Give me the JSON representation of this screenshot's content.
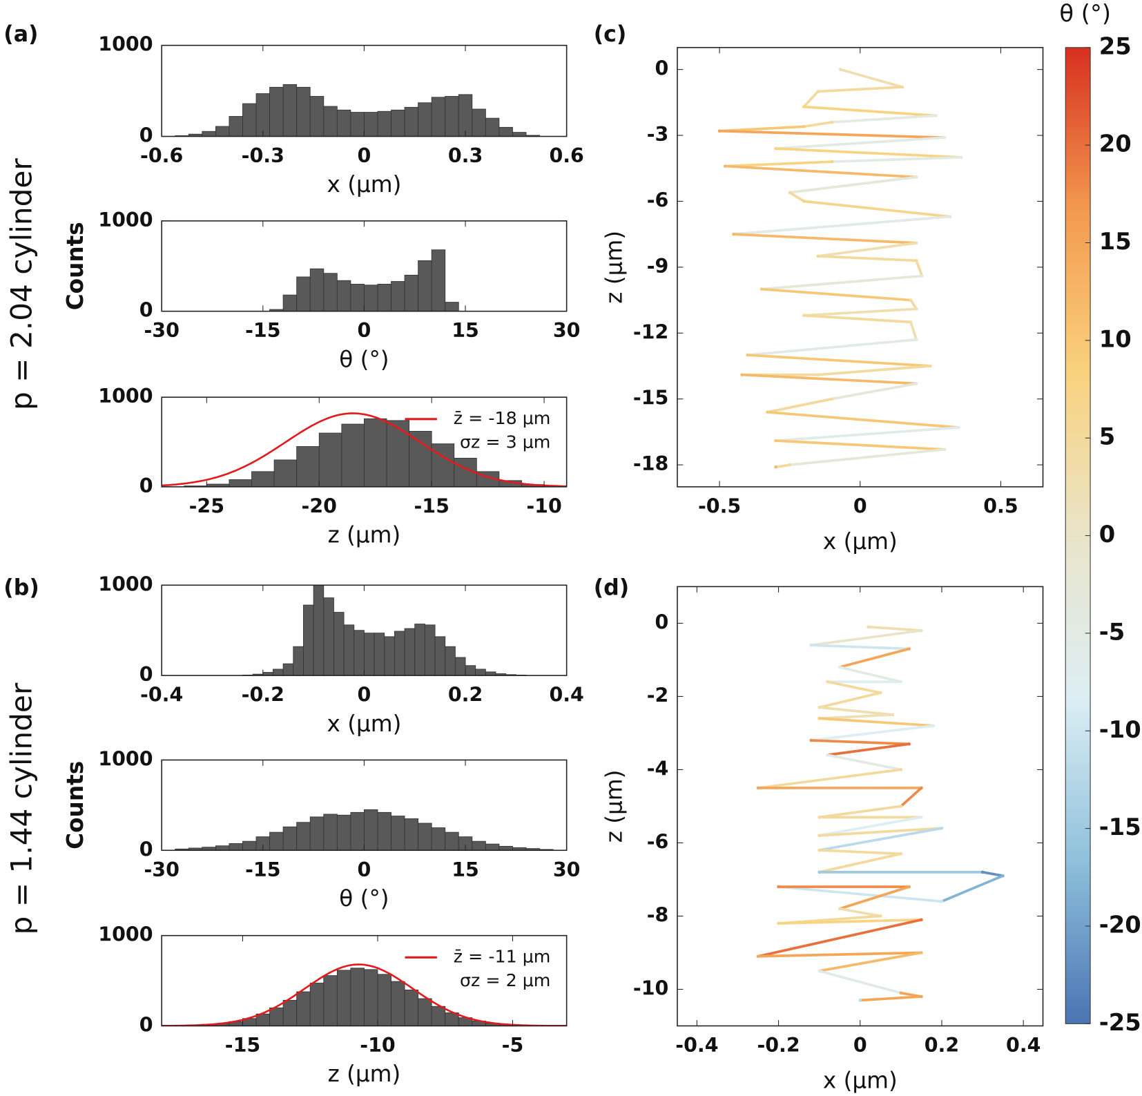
{
  "figure": {
    "panel_labels": [
      "(a)",
      "(b)",
      "(c)",
      "(d)"
    ],
    "row_labels": [
      "p = 2.04 cylinder",
      "p = 1.44 cylinder"
    ]
  },
  "chart_data": [
    {
      "type": "histogram",
      "xlabel": "x  (μm)",
      "xlim": [
        -0.6,
        0.6
      ],
      "xticks": [
        -0.6,
        -0.3,
        0,
        0.3,
        0.6
      ],
      "ylim": [
        0,
        1000
      ],
      "yticks": [
        0,
        1000
      ],
      "color": "#595959",
      "bins": [
        -0.56,
        -0.52,
        -0.48,
        -0.44,
        -0.4,
        -0.36,
        -0.32,
        -0.28,
        -0.24,
        -0.2,
        -0.16,
        -0.12,
        -0.08,
        -0.04,
        0,
        0.04,
        0.08,
        0.12,
        0.16,
        0.2,
        0.24,
        0.28,
        0.32,
        0.36,
        0.4,
        0.44,
        0.48,
        0.52
      ],
      "values": [
        8,
        25,
        55,
        110,
        220,
        360,
        470,
        540,
        570,
        540,
        440,
        330,
        290,
        265,
        265,
        275,
        290,
        320,
        370,
        430,
        440,
        460,
        300,
        200,
        100,
        45,
        12
      ]
    },
    {
      "type": "histogram",
      "xlabel": "θ  (°)",
      "ylabel": "Counts",
      "xlim": [
        -30,
        30
      ],
      "xticks": [
        -30,
        -15,
        0,
        15,
        30
      ],
      "ylim": [
        0,
        1000
      ],
      "yticks": [
        0,
        1000
      ],
      "color": "#595959",
      "bins": [
        -14,
        -12,
        -10,
        -8,
        -6,
        -4,
        -2,
        0,
        2,
        4,
        6,
        8,
        10,
        12,
        14
      ],
      "values": [
        20,
        180,
        380,
        470,
        420,
        340,
        300,
        290,
        300,
        330,
        400,
        560,
        680,
        100
      ]
    },
    {
      "type": "histogram",
      "xlabel": "z  (μm)",
      "xlim": [
        -27,
        -9
      ],
      "xticks": [
        -25,
        -20,
        -15,
        -10
      ],
      "ylim": [
        0,
        1000
      ],
      "yticks": [
        0,
        1000
      ],
      "color": "#595959",
      "bins": [
        -26,
        -25,
        -24,
        -23,
        -22,
        -21,
        -20,
        -19,
        -18,
        -17,
        -16,
        -15,
        -14,
        -13,
        -12,
        -11,
        -10
      ],
      "values": [
        10,
        30,
        80,
        170,
        300,
        450,
        600,
        700,
        760,
        740,
        620,
        480,
        320,
        170,
        70,
        25
      ],
      "fit": {
        "name": "z̄  = -18 μm",
        "sigma_label": "σz = 3 μm",
        "color": "#e31a1c",
        "mean": -18.5,
        "sigma": 3,
        "peak": 820
      }
    },
    {
      "type": "histogram",
      "xlabel": "x  (μm)",
      "xlim": [
        -0.4,
        0.4
      ],
      "xticks": [
        -0.4,
        -0.2,
        0,
        0.2,
        0.4
      ],
      "ylim": [
        0,
        1000
      ],
      "yticks": [
        0,
        1000
      ],
      "color": "#595959",
      "bins": [
        -0.24,
        -0.22,
        -0.2,
        -0.18,
        -0.16,
        -0.14,
        -0.12,
        -0.1,
        -0.08,
        -0.06,
        -0.04,
        -0.02,
        0,
        0.02,
        0.04,
        0.06,
        0.08,
        0.1,
        0.12,
        0.14,
        0.16,
        0.18,
        0.2,
        0.22,
        0.24,
        0.26,
        0.28,
        0.3,
        0.32
      ],
      "values": [
        5,
        15,
        35,
        70,
        130,
        320,
        780,
        1000,
        860,
        700,
        560,
        500,
        470,
        470,
        430,
        490,
        520,
        570,
        560,
        430,
        320,
        200,
        110,
        70,
        40,
        20,
        10,
        5
      ]
    },
    {
      "type": "histogram",
      "xlabel": "θ  (°)",
      "ylabel": "Counts",
      "xlim": [
        -30,
        30
      ],
      "xticks": [
        -30,
        -15,
        0,
        15,
        30
      ],
      "ylim": [
        0,
        1000
      ],
      "yticks": [
        0,
        1000
      ],
      "color": "#595959",
      "bins": [
        -28,
        -26,
        -24,
        -22,
        -20,
        -18,
        -16,
        -14,
        -12,
        -10,
        -8,
        -6,
        -4,
        -2,
        0,
        2,
        4,
        6,
        8,
        10,
        12,
        14,
        16,
        18,
        20,
        22,
        24,
        26,
        28
      ],
      "values": [
        15,
        25,
        35,
        50,
        75,
        100,
        150,
        200,
        260,
        310,
        370,
        400,
        390,
        420,
        450,
        420,
        380,
        350,
        300,
        250,
        200,
        150,
        100,
        70,
        45,
        30,
        20,
        10
      ]
    },
    {
      "type": "histogram",
      "xlabel": "z  (μm)",
      "xlim": [
        -18,
        -3
      ],
      "xticks": [
        -15,
        -10,
        -5
      ],
      "ylim": [
        0,
        1000
      ],
      "yticks": [
        0,
        1000
      ],
      "color": "#595959",
      "bins": [
        -17,
        -16.5,
        -16,
        -15.5,
        -15,
        -14.5,
        -14,
        -13.5,
        -13,
        -12.5,
        -12,
        -11.5,
        -11,
        -10.5,
        -10,
        -9.5,
        -9,
        -8.5,
        -8,
        -7.5,
        -7,
        -6.5,
        -6,
        -5.5,
        -5
      ],
      "values": [
        6,
        13,
        26,
        48,
        82,
        132,
        200,
        284,
        378,
        474,
        557,
        616,
        640,
        624,
        571,
        492,
        398,
        302,
        216,
        145,
        91,
        54,
        30,
        15
      ],
      "fit": {
        "name": "z̄  = -11 μm",
        "sigma_label": "σz = 2 μm",
        "color": "#e31a1c",
        "mean": -10.7,
        "sigma": 2,
        "peak": 680
      }
    },
    {
      "type": "trajectory",
      "xlabel": "x  (μm)",
      "ylabel": "z  (μm)",
      "xlim": [
        -0.65,
        0.65
      ],
      "xticks": [
        -0.5,
        0,
        0.5
      ],
      "ylim": [
        -19,
        1
      ],
      "yticks": [
        0,
        -3,
        -6,
        -9,
        -12,
        -15,
        -18
      ],
      "x": [
        -0.07,
        0.15,
        -0.15,
        -0.2,
        0.27,
        -0.1,
        -0.2,
        -0.5,
        0.3,
        -0.3,
        0.36,
        -0.1,
        -0.48,
        0.2,
        -0.25,
        -0.2,
        0.32,
        -0.45,
        0.2,
        -0.15,
        0.2,
        0.22,
        -0.35,
        0.18,
        0.2,
        -0.2,
        0.18,
        0.2,
        -0.4,
        0.25,
        -0.15,
        -0.42,
        0.2,
        -0.1,
        -0.33,
        0.35,
        -0.3,
        0.3,
        -0.25,
        -0.3
      ],
      "z": [
        0,
        -0.8,
        -1,
        -1.7,
        -2.1,
        -2.4,
        -2.6,
        -2.8,
        -3.1,
        -3.6,
        -4,
        -4.2,
        -4.4,
        -4.9,
        -5.6,
        -6,
        -6.7,
        -7.5,
        -7.9,
        -8.5,
        -8.7,
        -9.4,
        -10,
        -10.5,
        -10.9,
        -11.2,
        -11.5,
        -12.3,
        -13,
        -13.5,
        -13.9,
        -13.9,
        -14.3,
        -15,
        -15.6,
        -16.3,
        -16.9,
        -17.3,
        -18,
        -18.1
      ],
      "theta": [
        3,
        5,
        5,
        8,
        -5,
        5,
        10,
        15,
        -5,
        8,
        -5,
        8,
        12,
        -3,
        5,
        7,
        -5,
        12,
        3,
        5,
        5,
        -3,
        10,
        5,
        3,
        5,
        3,
        -5,
        10,
        5,
        5,
        12,
        -3,
        5,
        10,
        -6,
        10,
        -3,
        5,
        12
      ]
    },
    {
      "type": "trajectory",
      "xlabel": "x  (μm)",
      "ylabel": "z  (μm)",
      "xlim": [
        -0.448,
        0.448
      ],
      "xticks": [
        -0.4,
        -0.2,
        0,
        0.2,
        0.4
      ],
      "ylim": [
        -11,
        1
      ],
      "yticks": [
        0,
        -2,
        -4,
        -6,
        -8,
        -10
      ],
      "x": [
        0.02,
        0.15,
        -0.12,
        0.12,
        -0.05,
        0.1,
        -0.08,
        0.05,
        -0.1,
        0.08,
        -0.1,
        0.18,
        -0.12,
        0.12,
        -0.08,
        0.1,
        -0.25,
        0.15,
        0.1,
        -0.1,
        0.15,
        -0.1,
        0.2,
        -0.1,
        0.1,
        -0.1,
        0.3,
        0.35,
        0.2,
        -0.2,
        0.12,
        -0.05,
        0.05,
        -0.2,
        0.15,
        -0.25,
        0.15,
        -0.1,
        0.1,
        0.15,
        0
      ],
      "z": [
        -0.1,
        -0.2,
        -0.6,
        -0.7,
        -1.2,
        -1.6,
        -1.6,
        -1.9,
        -2.3,
        -2.5,
        -2.6,
        -2.8,
        -3.2,
        -3.3,
        -3.6,
        -4,
        -4.5,
        -4.5,
        -5,
        -5.3,
        -5.3,
        -5.8,
        -5.6,
        -6.2,
        -6.3,
        -6.8,
        -6.8,
        -6.9,
        -7.6,
        -7.2,
        -7.2,
        -7.8,
        -8,
        -8.2,
        -8.1,
        -9.1,
        -9,
        -9.5,
        -10.1,
        -10.2,
        -10.3
      ],
      "theta": [
        3,
        0,
        -10,
        15,
        -5,
        -8,
        5,
        5,
        3,
        2,
        10,
        -8,
        18,
        20,
        -5,
        5,
        15,
        18,
        5,
        5,
        -8,
        5,
        -12,
        5,
        5,
        -15,
        -22,
        -18,
        -10,
        18,
        15,
        3,
        5,
        8,
        20,
        15,
        12,
        -5,
        15,
        15,
        -12
      ]
    },
    {
      "type": "colorbar",
      "title": "θ  (°)",
      "clim": [
        -25,
        25
      ],
      "ticks": [
        -25,
        -20,
        -15,
        -10,
        -5,
        0,
        5,
        10,
        15,
        20,
        25
      ],
      "colormap": [
        "#4a74b3",
        "#8fc0db",
        "#dceef4",
        "#e9e4c9",
        "#f9d27e",
        "#f39a4f",
        "#d7301f"
      ]
    }
  ]
}
